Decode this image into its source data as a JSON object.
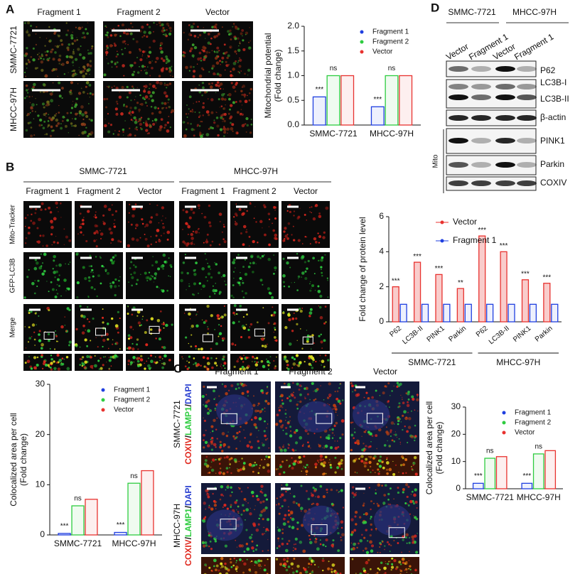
{
  "panels": {
    "a": {
      "label": "A",
      "columns": [
        "Fragment 1",
        "Fragment 2",
        "Vector"
      ],
      "rows": [
        "SMMC-7721",
        "MHCC-97H"
      ]
    },
    "b": {
      "label": "B",
      "groups": [
        "SMMC-7721",
        "MHCC-97H"
      ],
      "columns": [
        "Fragment 1",
        "Fragment 2",
        "Vector",
        "Fragment 1",
        "Fragment 2",
        "Vector"
      ],
      "rows": [
        "Mito-Tracker",
        "GFP-LC3B",
        "Merge"
      ]
    },
    "c": {
      "label": "C",
      "columns": [
        "Fragment 1",
        "Fragment 2",
        "Vector"
      ],
      "rows": [
        "SMMC-7721",
        "MHCC-97H"
      ],
      "stain": [
        "COXIV",
        "/",
        "LAMP1",
        "/",
        "DAPI"
      ]
    },
    "d": {
      "label": "D",
      "groups": [
        "SMMC-7721",
        "MHCC-97H"
      ],
      "lanes": [
        "Vector",
        "Fragment 1",
        "Vector",
        "Fragment 1"
      ],
      "bands": [
        "P62",
        "LC3B-I",
        "LC3B-II",
        "β-actin",
        "PINK1",
        "Parkin",
        "COXIV"
      ],
      "fraction": "Mito"
    }
  },
  "chart_data": [
    {
      "type": "bar",
      "ylabel": [
        "Mitochondrial potential",
        "(Fold change)"
      ],
      "categories": [
        "SMMC-7721",
        "MHCC-97H"
      ],
      "series": [
        {
          "name": "Fragment 1",
          "color": "#1f3fe0",
          "values": [
            0.57,
            0.37
          ],
          "sig": [
            "***",
            "***"
          ]
        },
        {
          "name": "Fragment 2",
          "color": "#2ecc40",
          "values": [
            1.0,
            1.0
          ],
          "sig": [
            "ns",
            "ns"
          ]
        },
        {
          "name": "Vector",
          "color": "#e8322f",
          "values": [
            1.0,
            1.0
          ]
        }
      ],
      "ylim": [
        0,
        2
      ],
      "yticks": [
        {
          "value": 0,
          "label": "0.0"
        },
        {
          "value": 0.5,
          "label": "0.5"
        },
        {
          "value": 1,
          "label": "1.0"
        },
        {
          "value": 1.5,
          "label": "1.5"
        },
        {
          "value": 2,
          "label": "2.0"
        }
      ],
      "legend": "upper right"
    },
    {
      "type": "bar",
      "ylabel": [
        "Fold change of protein level"
      ],
      "categories": [
        "P62",
        "LC3B-II",
        "PINK1",
        "Parkin",
        "P62",
        "LC3B-II",
        "PINK1",
        "Parkin"
      ],
      "group_labels": [
        "SMMC-7721",
        "MHCC-97H"
      ],
      "series": [
        {
          "name": "Vector",
          "color": "#e8322f",
          "values": [
            2.0,
            3.4,
            2.7,
            1.9,
            4.9,
            4.0,
            2.4,
            2.2
          ],
          "sig": [
            "***",
            "***",
            "***",
            "**",
            "***",
            "***",
            "***",
            "***"
          ]
        },
        {
          "name": "Fragment 1",
          "color": "#1f3fe0",
          "values": [
            1.0,
            1.0,
            1.0,
            1.0,
            1.0,
            1.0,
            1.0,
            1.0
          ]
        }
      ],
      "ylim": [
        0,
        6
      ],
      "yticks": [
        0,
        2,
        4,
        6
      ],
      "legend": "upper center"
    },
    {
      "type": "bar",
      "ylabel": [
        "Colocalized area per cell",
        "(Fold change)"
      ],
      "categories": [
        "SMMC-7721",
        "MHCC-97H"
      ],
      "series": [
        {
          "name": "Fragment 1",
          "color": "#1f3fe0",
          "values": [
            0.3,
            0.5
          ],
          "sig": [
            "***",
            "***"
          ]
        },
        {
          "name": "Fragment 2",
          "color": "#2ecc40",
          "values": [
            5.8,
            10.3
          ],
          "sig": [
            "ns",
            "ns"
          ]
        },
        {
          "name": "Vector",
          "color": "#e8322f",
          "values": [
            7.1,
            12.8
          ]
        }
      ],
      "ylim": [
        0,
        30
      ],
      "yticks": [
        0,
        10,
        20,
        30
      ],
      "legend": "upper right"
    },
    {
      "type": "bar",
      "ylabel": [
        "Colocalized area per cell",
        "(Fold change)"
      ],
      "categories": [
        "SMMC-7721",
        "MHCC-97H"
      ],
      "series": [
        {
          "name": "Fragment 1",
          "color": "#1f3fe0",
          "values": [
            2.0,
            2.0
          ],
          "sig": [
            "***",
            "***"
          ]
        },
        {
          "name": "Fragment 2",
          "color": "#2ecc40",
          "values": [
            11.2,
            12.8
          ],
          "sig": [
            "ns",
            "ns"
          ]
        },
        {
          "name": "Vector",
          "color": "#e8322f",
          "values": [
            11.8,
            14.0
          ]
        }
      ],
      "ylim": [
        0,
        30
      ],
      "yticks": [
        0,
        10,
        20,
        30
      ],
      "legend": "upper right"
    }
  ]
}
